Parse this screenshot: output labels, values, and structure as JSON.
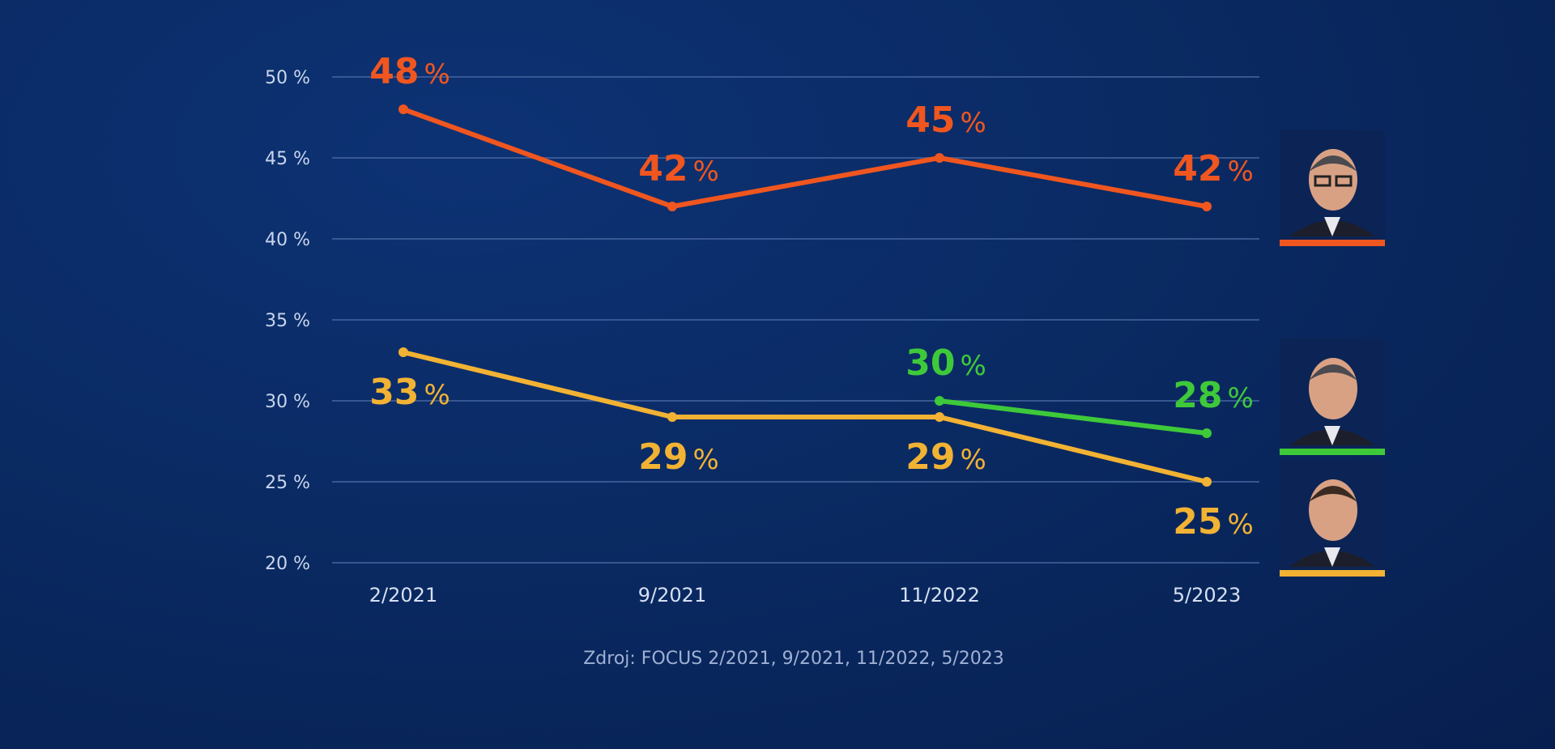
{
  "chart_data": {
    "type": "line",
    "categories": [
      "2/2021",
      "9/2021",
      "11/2022",
      "5/2023"
    ],
    "series": [
      {
        "values": [
          48,
          42,
          45,
          42
        ],
        "color": "#f0561f",
        "label_position": "above"
      },
      {
        "values": [
          33,
          29,
          29,
          25
        ],
        "color": "#f2b233",
        "label_position": "below"
      },
      {
        "values": [
          null,
          null,
          30,
          28
        ],
        "color": "#3ec93a",
        "label_position": "above"
      }
    ],
    "ylim": [
      20,
      50
    ],
    "y_ticks": [
      50,
      45,
      40,
      35,
      30,
      25,
      20
    ],
    "y_tick_labels": [
      "50 %",
      "45 %",
      "40 %",
      "35 %",
      "30 %",
      "25 %",
      "20 %"
    ],
    "grid": true,
    "value_suffix": "%",
    "legend": "right, candidate portraits with colored underline",
    "source": "Zdroj: FOCUS 2/2021, 9/2021, 11/2022, 5/2023"
  },
  "portraits": [
    {
      "icon": "portrait-glasses-man-icon",
      "color": "#f0561f"
    },
    {
      "icon": "portrait-short-hair-man-icon",
      "color": "#3ec93a"
    },
    {
      "icon": "portrait-round-face-man-icon",
      "color": "#f2b233"
    }
  ]
}
